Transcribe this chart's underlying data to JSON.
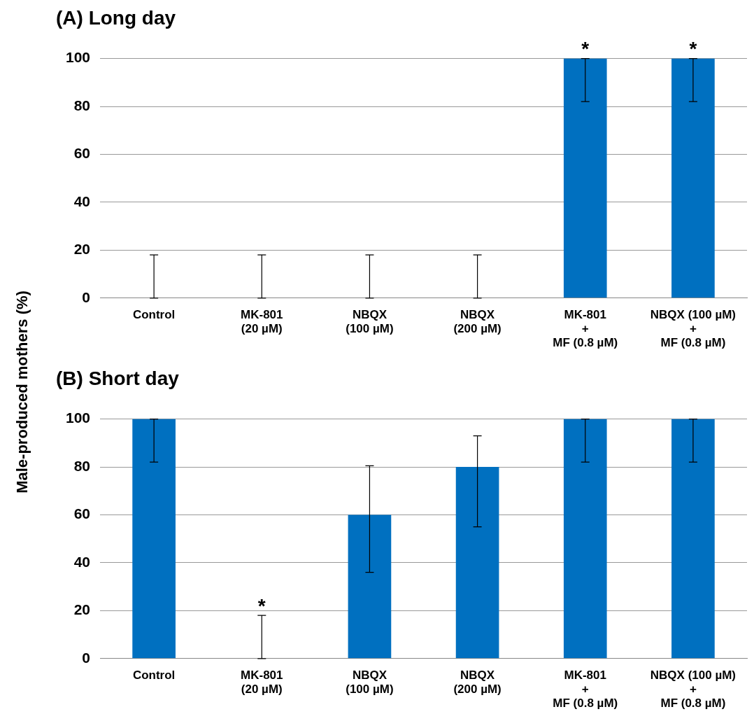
{
  "chart_data": [
    {
      "type": "bar",
      "title": "(A) Long day",
      "ylabel": "Male-produced mothers  (%)",
      "categories": [
        "Control",
        "MK-801\n(20 µM)",
        "NBQX\n(100 µM)",
        "NBQX\n(200 µM)",
        "MK-801\n+\nMF (0.8 µM)",
        "NBQX (100 µM)\n+\nMF (0.8 µM)"
      ],
      "color": "#0070c0",
      "values": [
        0,
        0,
        0,
        0,
        100,
        100
      ],
      "errors": [
        [
          0,
          18
        ],
        [
          0,
          18
        ],
        [
          0,
          18
        ],
        [
          0,
          18
        ],
        [
          82,
          100
        ],
        [
          82,
          100
        ]
      ],
      "ylim": [
        0,
        100
      ],
      "yticks": [
        0,
        20,
        40,
        60,
        80,
        100
      ],
      "grid": "y",
      "legend": false,
      "annotations": [
        {
          "text": "*",
          "x": "MK-801\n+\nMF (0.8 µM)",
          "y": 100
        },
        {
          "text": "*",
          "x": "NBQX (100 µM)\n+\nMF (0.8 µM)",
          "y": 100
        }
      ]
    },
    {
      "type": "bar",
      "title": "(B) Short day",
      "categories": [
        "Control",
        "MK-801\n(20 µM)",
        "NBQX\n(100 µM)",
        "NBQX\n(200 µM)",
        "MK-801\n+\nMF (0.8 µM)",
        "NBQX (100 µM)\n+\nMF (0.8 µM)"
      ],
      "color": "#0070c0",
      "values": [
        100,
        0,
        60,
        80,
        100,
        100
      ],
      "errors": [
        [
          82,
          100
        ],
        [
          0,
          18
        ],
        [
          36,
          80.5
        ],
        [
          55,
          93
        ],
        [
          82,
          100
        ],
        [
          82,
          100
        ]
      ],
      "ylim": [
        0,
        100
      ],
      "yticks": [
        0,
        20,
        40,
        60,
        80,
        100
      ],
      "grid": "y",
      "legend": false,
      "annotations": [
        {
          "text": "*",
          "x": "MK-801\n(20 µM)",
          "y": 18
        }
      ]
    }
  ]
}
